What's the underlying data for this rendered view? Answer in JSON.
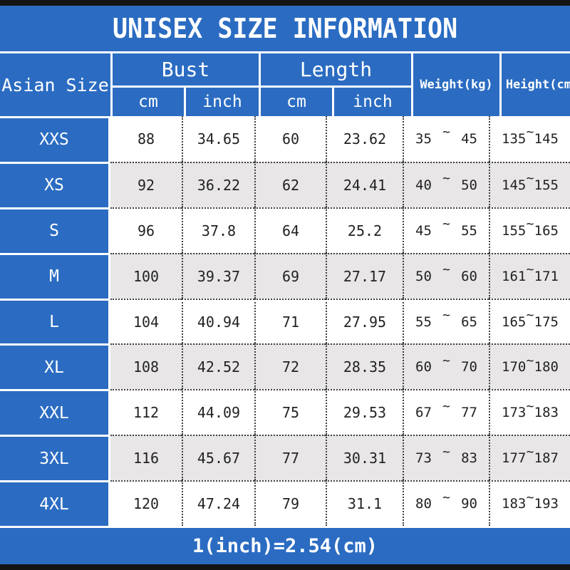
{
  "title": "UNISEX SIZE INFORMATION",
  "footer": "1(inch)=2.54(cm)",
  "colors": {
    "accent_blue": "#2b6cc2",
    "alt_row_gray": "#e8e6e7",
    "border_black": "#141414",
    "text_dark": "#222222",
    "text_white": "#ffffff"
  },
  "table": {
    "size_header": "Asian Size",
    "groups": [
      {
        "label": "Bust",
        "sub": [
          "cm",
          "inch"
        ]
      },
      {
        "label": "Length",
        "sub": [
          "cm",
          "inch"
        ]
      }
    ],
    "single_headers": [
      "Weight(kg)",
      "Height(cm)"
    ],
    "tilde": "~",
    "rows": [
      {
        "size": "XXS",
        "bust_cm": "88",
        "bust_inch": "34.65",
        "length_cm": "60",
        "length_inch": "23.62",
        "weight": [
          "35",
          "45"
        ],
        "height": [
          "135",
          "145"
        ]
      },
      {
        "size": "XS",
        "bust_cm": "92",
        "bust_inch": "36.22",
        "length_cm": "62",
        "length_inch": "24.41",
        "weight": [
          "40",
          "50"
        ],
        "height": [
          "145",
          "155"
        ]
      },
      {
        "size": "S",
        "bust_cm": "96",
        "bust_inch": "37.8",
        "length_cm": "64",
        "length_inch": "25.2",
        "weight": [
          "45",
          "55"
        ],
        "height": [
          "155",
          "165"
        ]
      },
      {
        "size": "M",
        "bust_cm": "100",
        "bust_inch": "39.37",
        "length_cm": "69",
        "length_inch": "27.17",
        "weight": [
          "50",
          "60"
        ],
        "height": [
          "161",
          "171"
        ]
      },
      {
        "size": "L",
        "bust_cm": "104",
        "bust_inch": "40.94",
        "length_cm": "71",
        "length_inch": "27.95",
        "weight": [
          "55",
          "65"
        ],
        "height": [
          "165",
          "175"
        ]
      },
      {
        "size": "XL",
        "bust_cm": "108",
        "bust_inch": "42.52",
        "length_cm": "72",
        "length_inch": "28.35",
        "weight": [
          "60",
          "70"
        ],
        "height": [
          "170",
          "180"
        ]
      },
      {
        "size": "XXL",
        "bust_cm": "112",
        "bust_inch": "44.09",
        "length_cm": "75",
        "length_inch": "29.53",
        "weight": [
          "67",
          "77"
        ],
        "height": [
          "173",
          "183"
        ]
      },
      {
        "size": "3XL",
        "bust_cm": "116",
        "bust_inch": "45.67",
        "length_cm": "77",
        "length_inch": "30.31",
        "weight": [
          "73",
          "83"
        ],
        "height": [
          "177",
          "187"
        ]
      },
      {
        "size": "4XL",
        "bust_cm": "120",
        "bust_inch": "47.24",
        "length_cm": "79",
        "length_inch": "31.1",
        "weight": [
          "80",
          "90"
        ],
        "height": [
          "183",
          "193"
        ]
      }
    ]
  }
}
